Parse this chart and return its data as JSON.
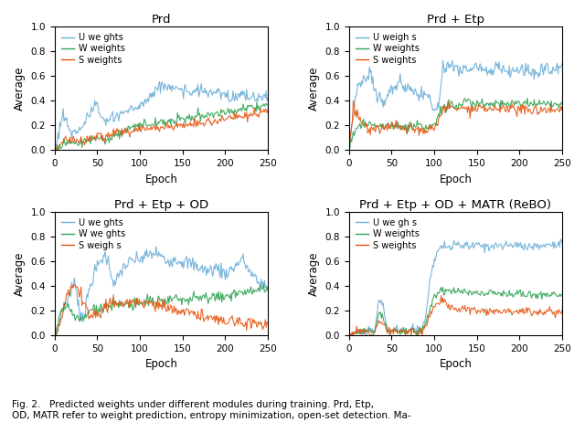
{
  "titles": [
    "Prd",
    "Prd + Etp",
    "Prd + Etp + OD",
    "Prd + Etp + OD + MATR (ReBO)"
  ],
  "xlabel": "Epoch",
  "ylabel": "Average",
  "ylim": [
    0.0,
    1.0
  ],
  "xlim": [
    0,
    250
  ],
  "legend_labels": [
    "U we ghts",
    "W weights",
    "S weights"
  ],
  "legend_labels2": [
    "U we gh s",
    "W weights",
    "S weights"
  ],
  "legend_labels3": [
    "U we ghts",
    "W we ghts",
    "S weigh s"
  ],
  "legend_labels4": [
    "U we gh s",
    "W weights",
    "S weights"
  ],
  "colors": {
    "U": "#6baed6",
    "W": "#31a354",
    "S": "#e6550d"
  },
  "figsize": [
    6.4,
    4.62
  ],
  "dpi": 100,
  "caption": "Fig. 2.   Predicted weights under different modules during training. Prd, Etp,\nOD, MATR refer to weight prediction, entropy minimization, open-set detection. Ma-"
}
